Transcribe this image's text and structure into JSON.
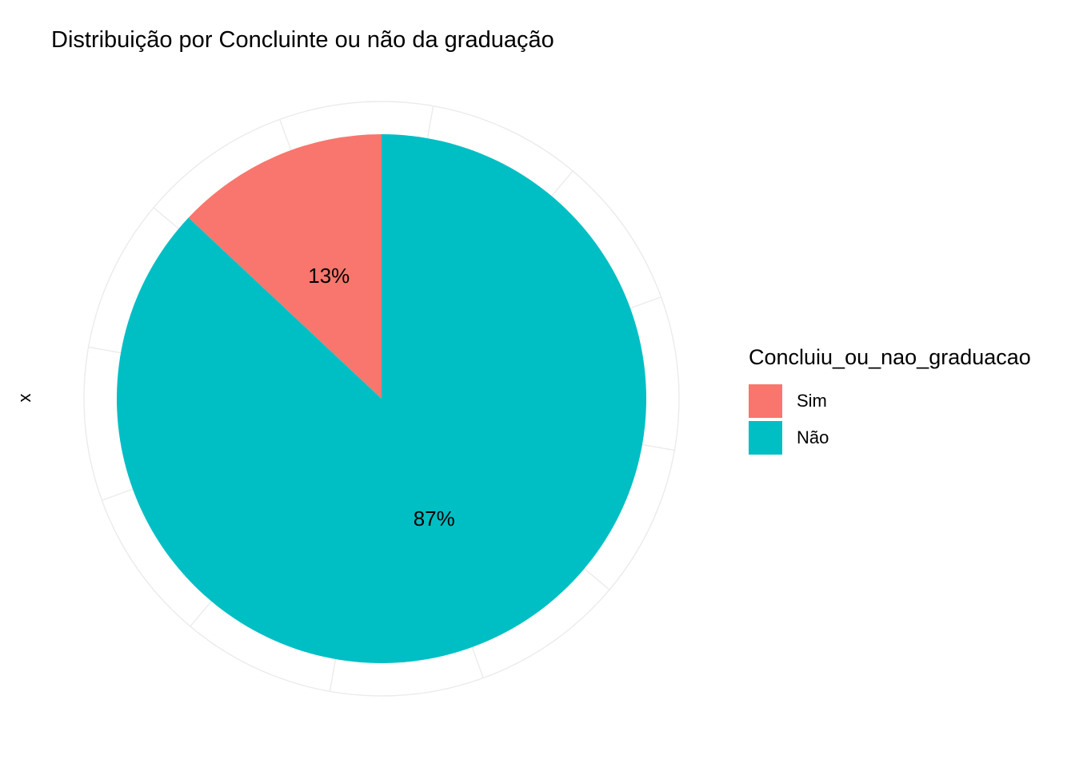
{
  "chart_data": {
    "type": "pie",
    "title": "Distribuição por Concluinte ou não da graduação",
    "ylabel": "x",
    "legend_title": "Concluiu_ou_nao_graduacao",
    "legend_position": "right",
    "grid": true,
    "slices": [
      {
        "label": "Sim",
        "value": 13,
        "text": "13%",
        "color": "#F8766D"
      },
      {
        "label": "Não",
        "value": 87,
        "text": "87%",
        "color": "#00BFC4"
      }
    ],
    "grid_color": "#EBEBEB"
  }
}
